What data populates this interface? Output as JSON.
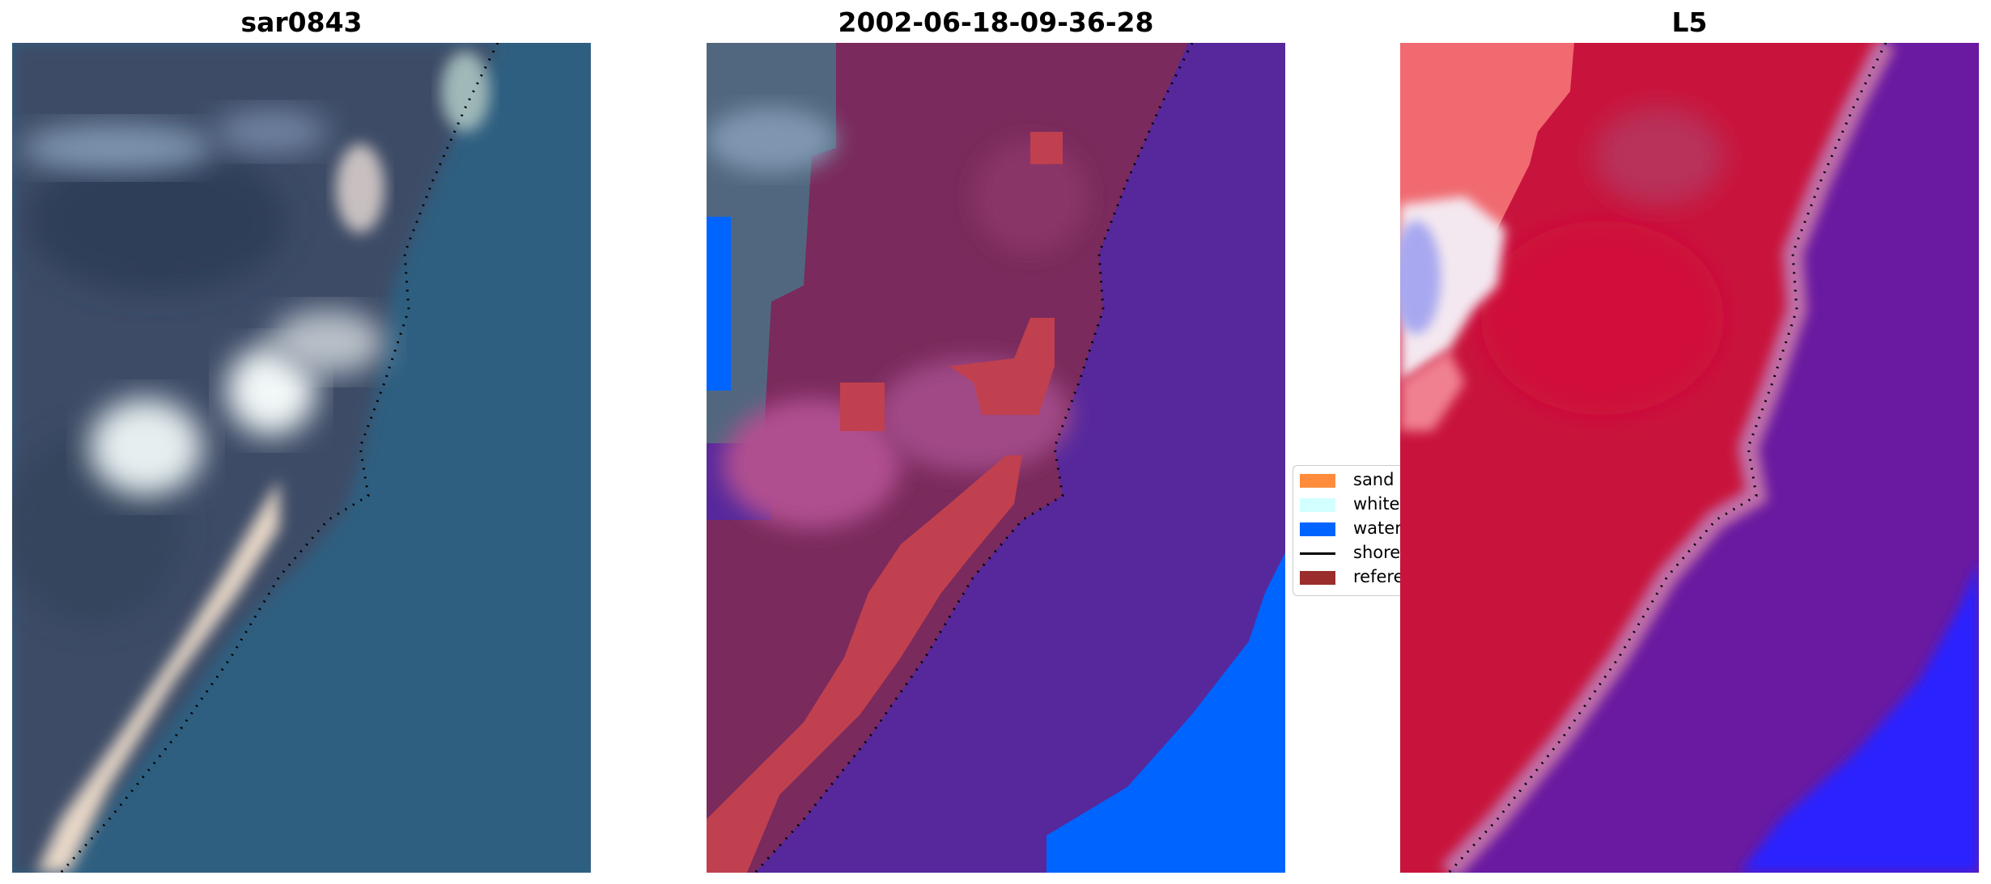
{
  "panels": [
    {
      "title": "sar0843",
      "kind": "true-colour image"
    },
    {
      "title": "2002-06-18-09-36-28",
      "kind": "classified image"
    },
    {
      "title": "L5",
      "kind": "index image"
    }
  ],
  "legend": {
    "items": [
      {
        "label": "sand",
        "color": "#ff8c3c",
        "type": "patch"
      },
      {
        "label": "whitew",
        "color": "#d2ffff",
        "type": "patch"
      },
      {
        "label": "water",
        "color": "#0064ff",
        "type": "patch"
      },
      {
        "label": "shorel",
        "color": "#000000",
        "type": "line"
      },
      {
        "label": "referer",
        "color": "#9b2d2d",
        "type": "patch"
      }
    ]
  },
  "colors": {
    "ocean": "#2f5f80",
    "land": "#3c4c68",
    "classified_land": "#7a2a5c",
    "classified_water": "#56289c",
    "index_land": "#c8143c",
    "index_water": "#6a1aa0",
    "index_deep_water": "#2020ff",
    "shoreline": "#000000"
  }
}
